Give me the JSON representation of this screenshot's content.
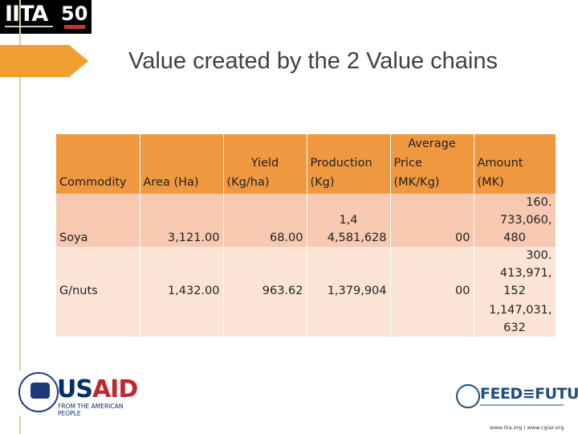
{
  "logos": {
    "iita_brand": "IITA",
    "iita_fifty": "50",
    "usaid_word_us": "US",
    "usaid_word_aid": "AID",
    "usaid_tag": "FROM THE AMERICAN PEOPLE",
    "ftf_word": "FEED≡FUTURE"
  },
  "title": "Value created by the 2 Value chains",
  "table": {
    "headers": {
      "commodity": "Commodity",
      "area": "Area (Ha)",
      "yield_1": "Yield",
      "yield_2": "(Kg/ha)",
      "production_1": "Production",
      "production_2": "(Kg)",
      "price_1": "Average",
      "price_2": "Price",
      "price_3": "(MK/Kg)",
      "amount_1": "Amount",
      "amount_2": "(MK)"
    },
    "rows": [
      {
        "commodity": "Soya",
        "area": "3,121.00",
        "yield": "68.00",
        "production_1": "1,4",
        "production_2": "4,581,628",
        "price": "00",
        "amount_1": "160.  733,060,",
        "amount_2": "480"
      },
      {
        "commodity": "G/nuts",
        "area": "1,432.00",
        "yield": "963.62",
        "production_2": "1,379,904",
        "price": "00",
        "amount_1": "300.  413,971,",
        "amount_2": "152"
      },
      {
        "amount_1": "1,147,031,",
        "amount_2": "632"
      }
    ]
  },
  "footer_url": "www.iita.org  |  www.cgiar.org",
  "colors": {
    "header": "#f09840",
    "row_dark": "#f7c9b0",
    "row_light": "#fbe4d6",
    "title_text": "#404040",
    "accent_arrow": "#f0a030"
  }
}
